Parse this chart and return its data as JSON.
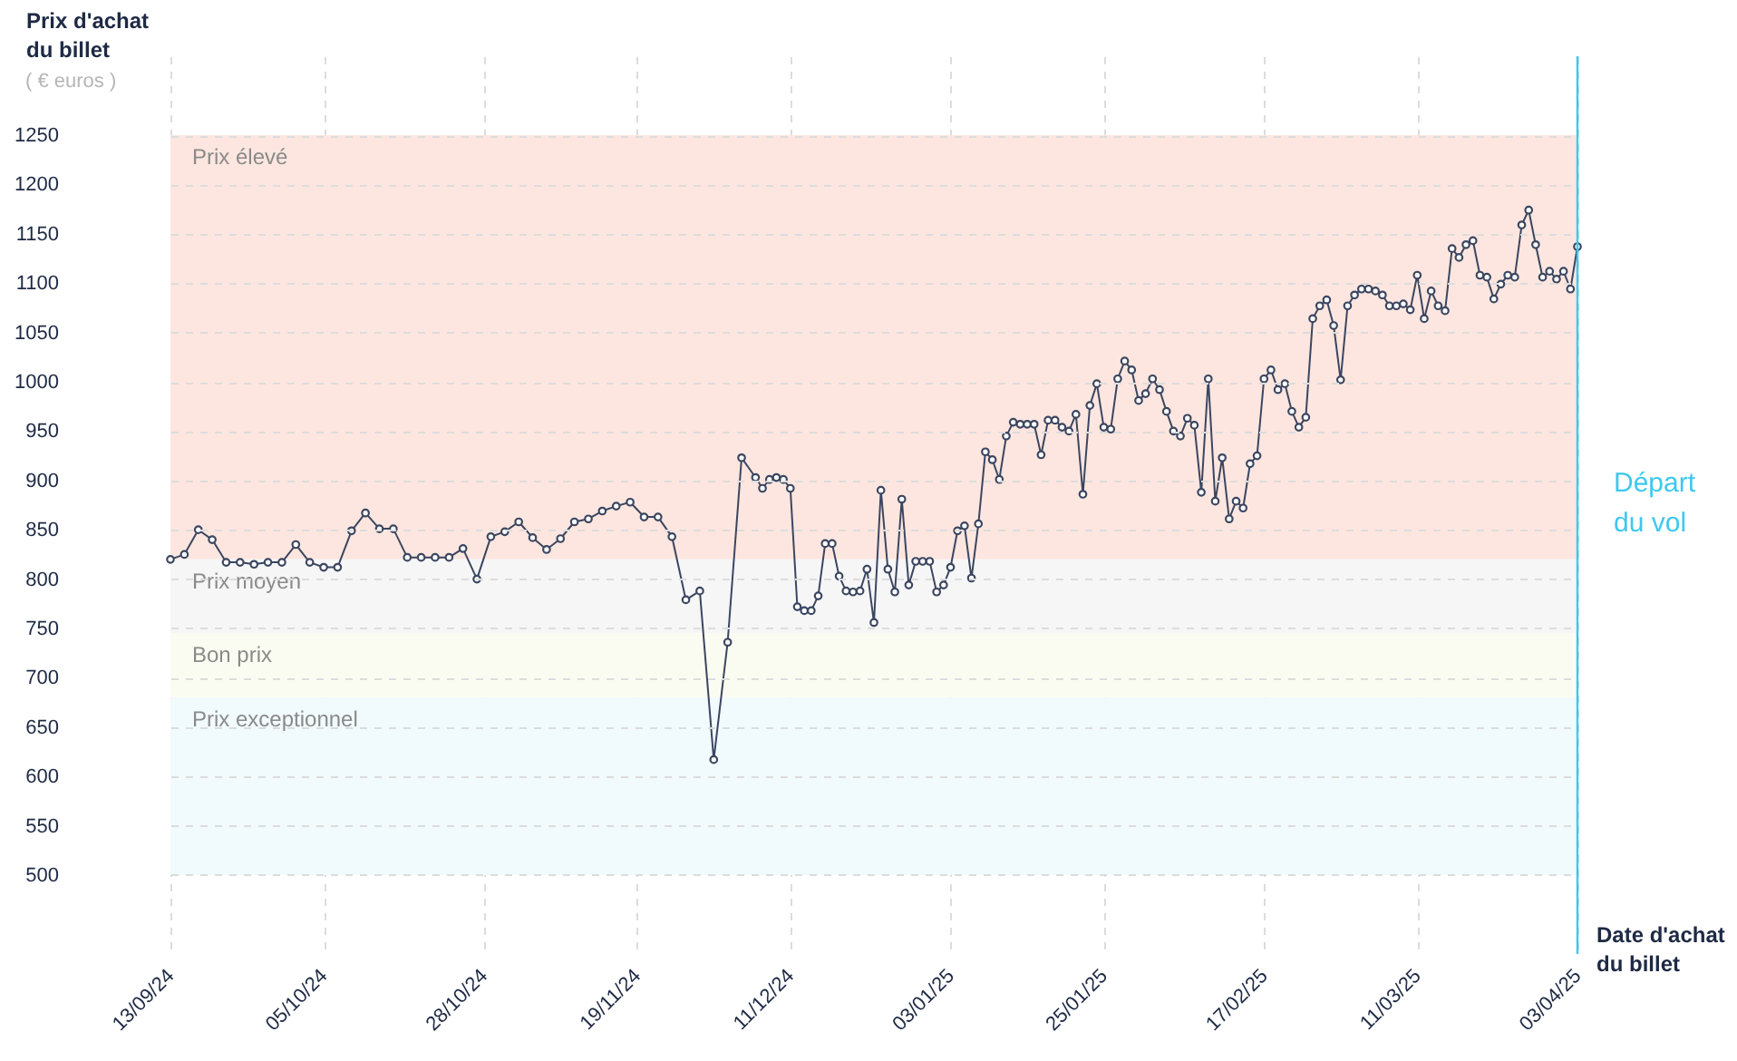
{
  "chart_data": {
    "type": "line",
    "ylabel": "Prix d'achat du billet",
    "subtitle": "( € euros )",
    "xlabel": "Date d'achat du billet",
    "x": [
      "2024-09-13",
      "2024-09-15",
      "2024-09-17",
      "2024-09-19",
      "2024-09-21",
      "2024-09-23",
      "2024-09-25",
      "2024-09-27",
      "2024-09-29",
      "2024-10-01",
      "2024-10-03",
      "2024-10-05",
      "2024-10-07",
      "2024-10-09",
      "2024-10-11",
      "2024-10-13",
      "2024-10-15",
      "2024-10-17",
      "2024-10-19",
      "2024-10-21",
      "2024-10-23",
      "2024-10-25",
      "2024-10-27",
      "2024-10-29",
      "2024-10-31",
      "2024-11-02",
      "2024-11-04",
      "2024-11-06",
      "2024-11-08",
      "2024-11-10",
      "2024-11-12",
      "2024-11-14",
      "2024-11-16",
      "2024-11-18",
      "2024-11-20",
      "2024-11-22",
      "2024-11-24",
      "2024-11-26",
      "2024-11-28",
      "2024-11-30",
      "2024-12-02",
      "2024-12-04",
      "2024-12-06",
      "2024-12-07",
      "2024-12-08",
      "2024-12-09",
      "2024-12-10",
      "2024-12-11",
      "2024-12-12",
      "2024-12-13",
      "2024-12-14",
      "2024-12-15",
      "2024-12-16",
      "2024-12-17",
      "2024-12-18",
      "2024-12-19",
      "2024-12-20",
      "2024-12-21",
      "2024-12-22",
      "2024-12-23",
      "2024-12-24",
      "2024-12-25",
      "2024-12-26",
      "2024-12-27",
      "2024-12-28",
      "2024-12-29",
      "2024-12-30",
      "2024-12-31",
      "2025-01-01",
      "2025-01-02",
      "2025-01-03",
      "2025-01-04",
      "2025-01-05",
      "2025-01-06",
      "2025-01-07",
      "2025-01-08",
      "2025-01-09",
      "2025-01-10",
      "2025-01-11",
      "2025-01-12",
      "2025-01-13",
      "2025-01-14",
      "2025-01-15",
      "2025-01-16",
      "2025-01-17",
      "2025-01-18",
      "2025-01-19",
      "2025-01-20",
      "2025-01-21",
      "2025-01-22",
      "2025-01-23",
      "2025-01-24",
      "2025-01-25",
      "2025-01-26",
      "2025-01-27",
      "2025-01-28",
      "2025-01-29",
      "2025-01-30",
      "2025-01-31",
      "2025-02-01",
      "2025-02-02",
      "2025-02-03",
      "2025-02-04",
      "2025-02-05",
      "2025-02-06",
      "2025-02-07",
      "2025-02-08",
      "2025-02-09",
      "2025-02-10",
      "2025-02-11",
      "2025-02-12",
      "2025-02-13",
      "2025-02-14",
      "2025-02-15",
      "2025-02-16",
      "2025-02-17",
      "2025-02-18",
      "2025-02-19",
      "2025-02-20",
      "2025-02-21",
      "2025-02-22",
      "2025-02-23",
      "2025-02-24",
      "2025-02-25",
      "2025-02-26",
      "2025-02-27",
      "2025-02-28",
      "2025-03-01",
      "2025-03-02",
      "2025-03-03",
      "2025-03-04",
      "2025-03-05",
      "2025-03-06",
      "2025-03-07",
      "2025-03-08",
      "2025-03-09",
      "2025-03-10",
      "2025-03-11",
      "2025-03-12",
      "2025-03-13",
      "2025-03-14",
      "2025-03-15",
      "2025-03-16",
      "2025-03-17",
      "2025-03-18",
      "2025-03-19",
      "2025-03-20",
      "2025-03-21",
      "2025-03-22",
      "2025-03-23",
      "2025-03-24",
      "2025-03-25",
      "2025-03-26",
      "2025-03-27",
      "2025-03-28",
      "2025-03-29",
      "2025-03-30",
      "2025-03-31",
      "2025-04-01",
      "2025-04-02",
      "2025-04-03"
    ],
    "series": [
      {
        "color": "#3b4660",
        "values": [
          820,
          825,
          850,
          840,
          817,
          817,
          815,
          817,
          817,
          835,
          817,
          812,
          812,
          849,
          867,
          851,
          851,
          822,
          822,
          822,
          822,
          831,
          800,
          843,
          848,
          858,
          842,
          830,
          841,
          858,
          861,
          869,
          874,
          878,
          863,
          863,
          843,
          779,
          788,
          617,
          736,
          923,
          903,
          892,
          901,
          903,
          901,
          892,
          772,
          768,
          768,
          783,
          836,
          836,
          803,
          788,
          787,
          788,
          810,
          756,
          890,
          810,
          787,
          881,
          794,
          818,
          818,
          818,
          787,
          794,
          812,
          849,
          854,
          801,
          856,
          929,
          921,
          901,
          945,
          959,
          957,
          957,
          957,
          926,
          961,
          961,
          954,
          950,
          967,
          886,
          976,
          998,
          954,
          952,
          1003,
          1021,
          1012,
          981,
          988,
          1003,
          992,
          970,
          950,
          945,
          963,
          956,
          888,
          1003,
          879,
          923,
          861,
          879,
          872,
          917,
          925,
          1003,
          1012,
          992,
          998,
          970,
          954,
          964,
          1064,
          1077,
          1083,
          1057,
          1002,
          1077,
          1088,
          1094,
          1094,
          1092,
          1088,
          1077,
          1077,
          1079,
          1073,
          1108,
          1064,
          1092,
          1077,
          1072,
          1135,
          1126,
          1139,
          1143,
          1108,
          1106,
          1084,
          1099,
          1108,
          1106,
          1159,
          1174,
          1139,
          1106,
          1112,
          1104,
          1112,
          1094,
          1137
        ]
      }
    ],
    "marker": "circle",
    "grid": true,
    "xlim": [
      "2024-09-13",
      "2025-04-03"
    ],
    "xticks": [
      {
        "value": "2024-09-13",
        "label": "13/09/24"
      },
      {
        "value": "2024-10-05",
        "label": "05/10/24"
      },
      {
        "value": "2024-10-28",
        "label": "28/10/24"
      },
      {
        "value": "2024-11-19",
        "label": "19/11/24"
      },
      {
        "value": "2024-12-11",
        "label": "11/12/24"
      },
      {
        "value": "2025-01-03",
        "label": "03/01/25"
      },
      {
        "value": "2025-01-25",
        "label": "25/01/25"
      },
      {
        "value": "2025-02-17",
        "label": "17/02/25"
      },
      {
        "value": "2025-03-11",
        "label": "11/03/25"
      },
      {
        "value": "2025-04-03",
        "label": "03/04/25"
      }
    ],
    "ylim": [
      420,
      1330
    ],
    "yticks": [
      500,
      550,
      600,
      650,
      700,
      750,
      800,
      850,
      900,
      950,
      1000,
      1050,
      1100,
      1150,
      1200,
      1250
    ],
    "bands": [
      {
        "axis": "y",
        "from": 820,
        "to": 1250,
        "label": "Prix élevé",
        "color": "#fde6df"
      },
      {
        "axis": "y",
        "from": 745,
        "to": 820,
        "label": "Prix moyen",
        "color": "#f6f6f7"
      },
      {
        "axis": "y",
        "from": 680,
        "to": 745,
        "label": "Bon prix",
        "color": "#fbfcf1"
      },
      {
        "axis": "y",
        "from": 500,
        "to": 680,
        "label": "Prix exceptionnel",
        "color": "#f1fafd"
      }
    ],
    "ref_lines": [
      {
        "axis": "x",
        "value": "2025-04-03",
        "label": "Départ du vol",
        "color": "#3ec8ee"
      }
    ]
  }
}
